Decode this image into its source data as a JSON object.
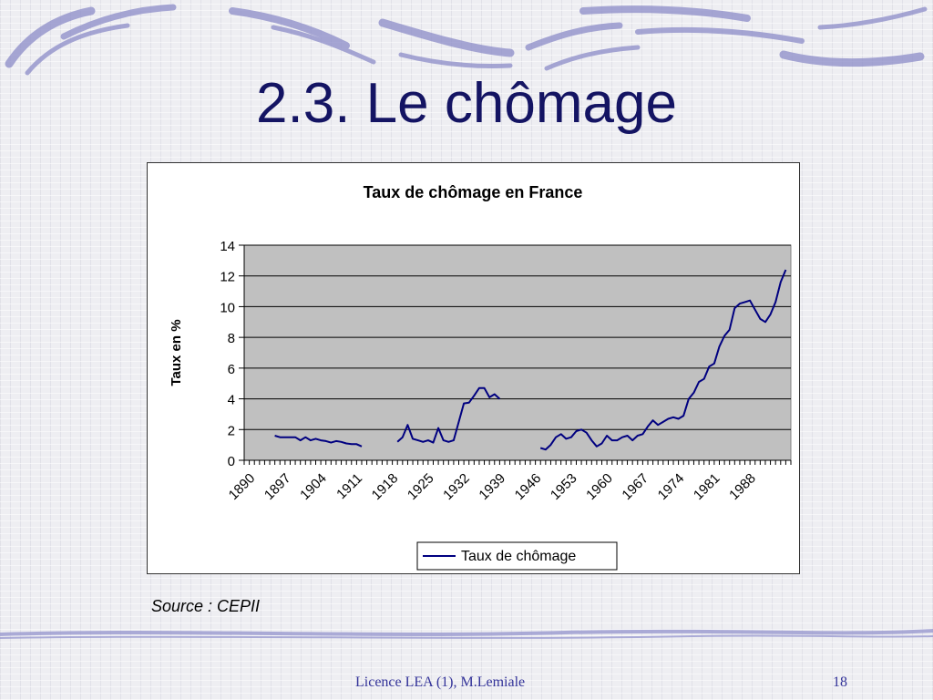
{
  "slide": {
    "title": "2.3. Le chômage",
    "source": "Source : CEPII",
    "footer": "Licence LEA (1), M.Lemiale",
    "page_number": "18"
  },
  "colors": {
    "title": "#141463",
    "series": "#000080",
    "plot_background": "#c0c0c0",
    "decor": "#8c8cc8"
  },
  "chart_data": {
    "type": "line",
    "title": "Taux de chômage en France",
    "xlabel": "",
    "ylabel": "Taux en %",
    "ylim": [
      0,
      14
    ],
    "y_ticks": [
      "0",
      "2",
      "4",
      "6",
      "8",
      "10",
      "12",
      "14"
    ],
    "x_range": [
      1890,
      1997
    ],
    "x_tick_labels": [
      "1890",
      "1897",
      "1904",
      "1911",
      "1918",
      "1925",
      "1932",
      "1939",
      "1946",
      "1953",
      "1960",
      "1967",
      "1974",
      "1981",
      "1988"
    ],
    "grid": true,
    "legend_position": "bottom",
    "series": [
      {
        "name": "Taux de chômage",
        "segments": [
          [
            [
              1896,
              1.6
            ],
            [
              1897,
              1.5
            ],
            [
              1898,
              1.5
            ],
            [
              1899,
              1.5
            ],
            [
              1900,
              1.5
            ],
            [
              1901,
              1.3
            ],
            [
              1902,
              1.5
            ],
            [
              1903,
              1.3
            ],
            [
              1904,
              1.4
            ],
            [
              1905,
              1.3
            ],
            [
              1906,
              1.25
            ],
            [
              1907,
              1.15
            ],
            [
              1908,
              1.25
            ],
            [
              1909,
              1.2
            ],
            [
              1910,
              1.1
            ],
            [
              1911,
              1.05
            ],
            [
              1912,
              1.05
            ],
            [
              1913,
              0.9
            ]
          ],
          [
            [
              1920,
              1.2
            ],
            [
              1921,
              1.5
            ],
            [
              1922,
              2.3
            ],
            [
              1923,
              1.4
            ],
            [
              1924,
              1.3
            ],
            [
              1925,
              1.2
            ],
            [
              1926,
              1.3
            ],
            [
              1927,
              1.15
            ],
            [
              1928,
              2.1
            ],
            [
              1929,
              1.3
            ],
            [
              1930,
              1.2
            ],
            [
              1931,
              1.3
            ],
            [
              1932,
              2.5
            ],
            [
              1933,
              3.7
            ],
            [
              1934,
              3.75
            ],
            [
              1935,
              4.2
            ],
            [
              1936,
              4.7
            ],
            [
              1937,
              4.7
            ],
            [
              1938,
              4.1
            ],
            [
              1939,
              4.3
            ],
            [
              1940,
              4.0
            ]
          ],
          [
            [
              1948,
              0.8
            ],
            [
              1949,
              0.7
            ],
            [
              1950,
              1.0
            ],
            [
              1951,
              1.5
            ],
            [
              1952,
              1.7
            ],
            [
              1953,
              1.4
            ],
            [
              1954,
              1.5
            ],
            [
              1955,
              1.9
            ],
            [
              1956,
              2.0
            ],
            [
              1957,
              1.8
            ],
            [
              1958,
              1.3
            ],
            [
              1959,
              0.9
            ],
            [
              1960,
              1.1
            ],
            [
              1961,
              1.6
            ],
            [
              1962,
              1.3
            ],
            [
              1963,
              1.3
            ],
            [
              1964,
              1.5
            ],
            [
              1965,
              1.6
            ],
            [
              1966,
              1.3
            ],
            [
              1967,
              1.6
            ],
            [
              1968,
              1.7
            ],
            [
              1969,
              2.2
            ],
            [
              1970,
              2.6
            ],
            [
              1971,
              2.3
            ],
            [
              1972,
              2.5
            ],
            [
              1973,
              2.7
            ],
            [
              1974,
              2.8
            ],
            [
              1975,
              2.7
            ],
            [
              1976,
              2.9
            ],
            [
              1977,
              4.0
            ],
            [
              1978,
              4.4
            ],
            [
              1979,
              5.1
            ],
            [
              1980,
              5.3
            ],
            [
              1981,
              6.1
            ],
            [
              1982,
              6.3
            ],
            [
              1983,
              7.4
            ],
            [
              1984,
              8.1
            ],
            [
              1985,
              8.5
            ],
            [
              1986,
              9.9
            ],
            [
              1987,
              10.2
            ],
            [
              1988,
              10.3
            ],
            [
              1989,
              10.4
            ],
            [
              1990,
              9.8
            ],
            [
              1991,
              9.2
            ],
            [
              1992,
              9.0
            ],
            [
              1993,
              9.5
            ],
            [
              1994,
              10.3
            ],
            [
              1995,
              11.6
            ],
            [
              1996,
              12.4
            ]
          ]
        ]
      }
    ]
  }
}
